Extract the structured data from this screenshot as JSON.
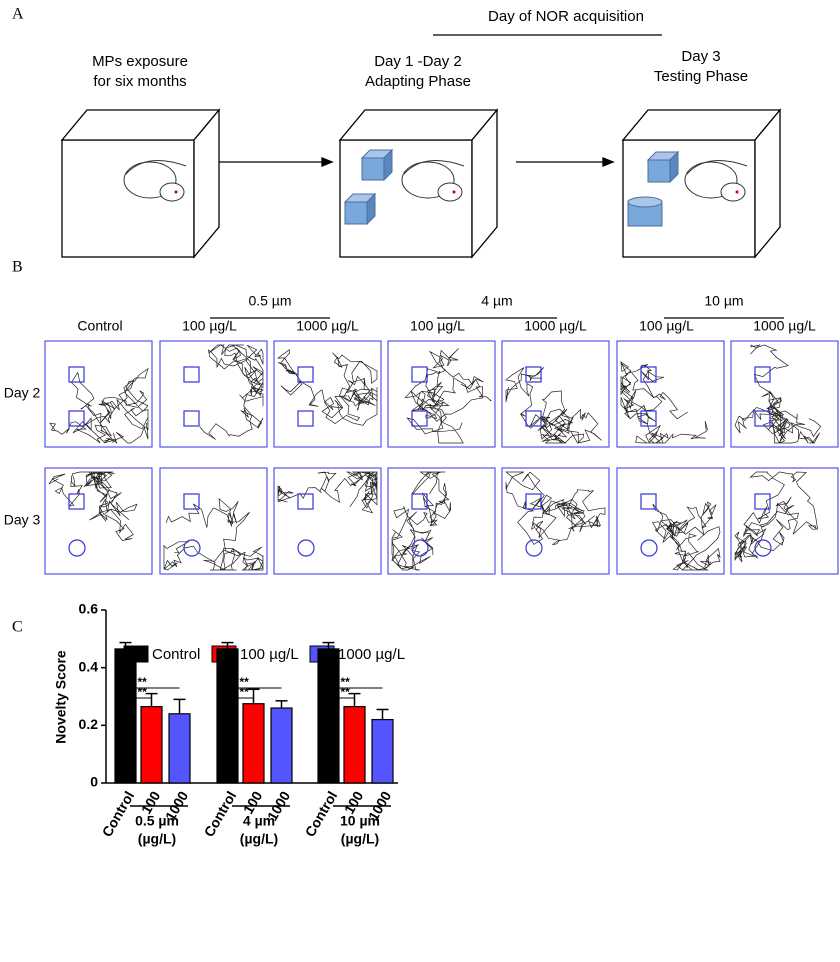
{
  "panel_a": {
    "label": "A",
    "header": "Day of NOR acquisition",
    "stages": [
      [
        "MPs exposure",
        "for six months"
      ],
      [
        "Day 1 -Day 2",
        "Adapting Phase"
      ],
      [
        "Day 3",
        "Testing Phase"
      ]
    ]
  },
  "panel_b": {
    "label": "B",
    "control": "Control",
    "groups": [
      "0.5 µm",
      "4 µm",
      "10 µm"
    ],
    "concentrations": [
      "100 µg/L",
      "1000 µg/L"
    ],
    "rows": [
      "Day 2",
      "Day 3"
    ]
  },
  "panel_c": {
    "label": "C"
  },
  "chart_data": {
    "type": "bar",
    "ylabel": "Novelty Score",
    "categories": [
      "0.5 µm",
      "4 µm",
      "10 µm"
    ],
    "category_unit": "(µg/L)",
    "bar_labels": [
      "Control",
      "100",
      "1000"
    ],
    "series": [
      {
        "name": "Control",
        "color": "#000000",
        "values": [
          0.465,
          0.465,
          0.465
        ],
        "errors": [
          0.022,
          0.022,
          0.022
        ]
      },
      {
        "name": "100 µg/L",
        "color": "#ff0000",
        "values": [
          0.265,
          0.275,
          0.265
        ],
        "errors": [
          0.045,
          0.05,
          0.045
        ]
      },
      {
        "name": "1000 µg/L",
        "color": "#5555ff",
        "values": [
          0.24,
          0.26,
          0.22
        ],
        "errors": [
          0.05,
          0.025,
          0.035
        ]
      }
    ],
    "significance_label": "**",
    "ylim": [
      0,
      0.6
    ],
    "yticks": [
      0,
      0.2,
      0.4,
      0.6
    ]
  }
}
